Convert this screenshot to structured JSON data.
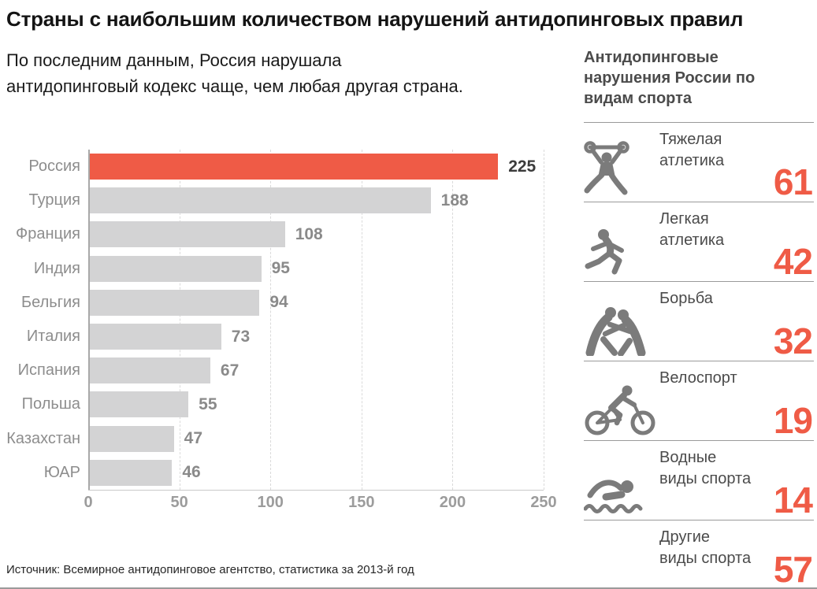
{
  "title": "Страны с наибольшим количеством нарушений антидопинговых правил",
  "subtitle": {
    "text": "По последним данным, Россия нарушала антидопинговый кодекс чаще, чем любая другая страна.",
    "lines": [
      "По последним данным, Россия нарушала",
      "антидопинговый кодекс чаще, чем любая другая страна."
    ]
  },
  "source": "Источник: Всемирное антидопинговое агентство, статистика за 2013-й год",
  "colors": {
    "accent_red": "#EF5B46",
    "bar_gray": "#D3D3D4",
    "icon_gray": "#7B7B7B",
    "label_gray": "#8D8D8D",
    "divider_gray": "#9A9A9A",
    "text_dark": "#141414"
  },
  "chart_data": {
    "type": "bar",
    "orientation": "horizontal",
    "title": "Страны с наибольшим количеством нарушений антидопинговых правил",
    "categories": [
      "Россия",
      "Турция",
      "Франция",
      "Индия",
      "Бельгия",
      "Италия",
      "Испания",
      "Польша",
      "Казахстан",
      "ЮАР"
    ],
    "values": [
      225,
      188,
      108,
      95,
      94,
      73,
      67,
      55,
      47,
      46
    ],
    "highlight_index": 0,
    "highlight_color": "#EF5B46",
    "bar_color": "#D3D3D4",
    "xlim": [
      0,
      250
    ],
    "x_ticks": [
      0,
      50,
      100,
      150,
      200,
      250
    ],
    "grid": "vertical-dashed",
    "value_labels": true
  },
  "side_panel": {
    "header": {
      "text": "Антидопинговые нарушения России по видам спорта",
      "lines": [
        "Антидопинговые",
        "нарушения России по",
        "видам спорта"
      ]
    },
    "items": [
      {
        "label": "Тяжелая атлетика",
        "label_lines": [
          "Тяжелая",
          "атлетика"
        ],
        "value": 61,
        "icon": "weightlifting-icon"
      },
      {
        "label": "Легкая атлетика",
        "label_lines": [
          "Легкая",
          "атлетика"
        ],
        "value": 42,
        "icon": "running-icon"
      },
      {
        "label": "Борьба",
        "label_lines": [
          "Борьба",
          ""
        ],
        "value": 32,
        "icon": "wrestling-icon"
      },
      {
        "label": "Велоспорт",
        "label_lines": [
          "Велоспорт",
          ""
        ],
        "value": 19,
        "icon": "cycling-icon"
      },
      {
        "label": "Водные виды спорта",
        "label_lines": [
          "Водные",
          "виды спорта"
        ],
        "value": 14,
        "icon": "swimming-icon"
      },
      {
        "label": "Другие виды спорта",
        "label_lines": [
          "Другие",
          "виды спорта"
        ],
        "value": 57,
        "icon": null
      }
    ]
  }
}
